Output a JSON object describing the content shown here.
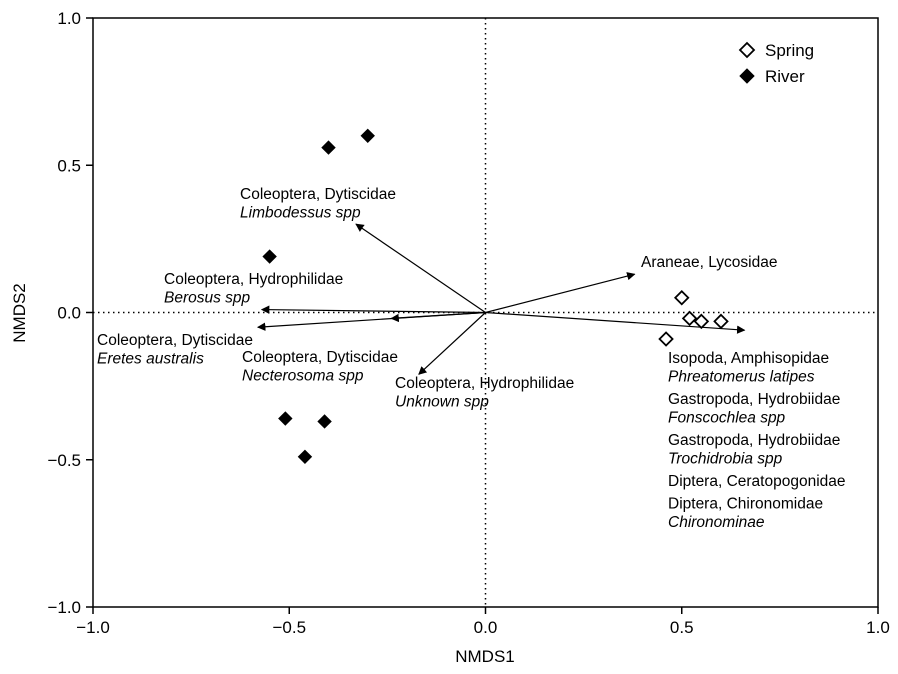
{
  "chart_data": {
    "type": "scatter",
    "title": "",
    "xlabel": "NMDS1",
    "ylabel": "NMDS2",
    "xlim": [
      -1.0,
      1.0
    ],
    "ylim": [
      -1.0,
      1.0
    ],
    "xticks": [
      -1.0,
      -0.5,
      0.0,
      0.5,
      1.0
    ],
    "yticks": [
      -1.0,
      -0.5,
      0.0,
      0.5,
      1.0
    ],
    "x_tick_labels": [
      "−1.0",
      "−0.5",
      "0.0",
      "0.5",
      "1.0"
    ],
    "y_tick_labels": [
      "−1.0",
      "−0.5",
      "0.0",
      "0.5",
      "1.0"
    ],
    "grid": false,
    "reference_lines": {
      "x": 0,
      "y": 0,
      "style": "dotted"
    },
    "legend": {
      "position": "top-right",
      "entries": [
        "Spring",
        "River"
      ]
    },
    "series": [
      {
        "name": "Spring",
        "marker": "open-diamond",
        "color": "#000000",
        "points": [
          {
            "x": 0.5,
            "y": 0.05
          },
          {
            "x": 0.52,
            "y": -0.02
          },
          {
            "x": 0.55,
            "y": -0.03
          },
          {
            "x": 0.6,
            "y": -0.03
          },
          {
            "x": 0.46,
            "y": -0.09
          }
        ]
      },
      {
        "name": "River",
        "marker": "filled-diamond",
        "color": "#000000",
        "points": [
          {
            "x": -0.3,
            "y": 0.6
          },
          {
            "x": -0.4,
            "y": 0.56
          },
          {
            "x": -0.55,
            "y": 0.19
          },
          {
            "x": -0.51,
            "y": -0.36
          },
          {
            "x": -0.41,
            "y": -0.37
          },
          {
            "x": -0.46,
            "y": -0.49
          }
        ]
      }
    ],
    "vectors": [
      {
        "x": -0.33,
        "y": 0.3,
        "lines": [
          {
            "text": "Coleoptera, Dytiscidae",
            "italic": false
          },
          {
            "text": "Limbodessus spp",
            "italic": true
          }
        ]
      },
      {
        "x": -0.57,
        "y": 0.01,
        "lines": [
          {
            "text": "Coleoptera, Hydrophilidae",
            "italic": false
          },
          {
            "text": "Berosus spp",
            "italic": true
          }
        ]
      },
      {
        "x": -0.58,
        "y": -0.05,
        "lines": [
          {
            "text": "Coleoptera, Dytiscidae",
            "italic": false
          },
          {
            "text": "Eretes australis",
            "italic": true
          }
        ]
      },
      {
        "x": -0.24,
        "y": -0.02,
        "lines": [
          {
            "text": "Coleoptera, Dytiscidae",
            "italic": false
          },
          {
            "text": "Necterosoma spp",
            "italic": true
          }
        ]
      },
      {
        "x": -0.17,
        "y": -0.21,
        "lines": [
          {
            "text": "Coleoptera, Hydrophilidae",
            "italic": false
          },
          {
            "text": "Unknown spp",
            "italic": true
          }
        ]
      },
      {
        "x": 0.38,
        "y": 0.13,
        "lines": [
          {
            "text": "Araneae, Lycosidae",
            "italic": false
          }
        ]
      },
      {
        "x": 0.66,
        "y": -0.06,
        "lines": [
          {
            "text": "Isopoda, Amphisopidae",
            "italic": false
          },
          {
            "text": "Phreatomerus latipes",
            "italic": true
          },
          {
            "text": "Gastropoda, Hydrobiidae",
            "italic": false
          },
          {
            "text": "Fonscochlea spp",
            "italic": true
          },
          {
            "text": "Gastropoda, Hydrobiidae",
            "italic": false
          },
          {
            "text": "Trochidrobia spp",
            "italic": true
          },
          {
            "text": "Diptera, Ceratopogonidae",
            "italic": false
          },
          {
            "text": "Diptera, Chironomidae",
            "italic": false
          },
          {
            "text": "Chironominae",
            "italic": true
          }
        ]
      }
    ]
  }
}
